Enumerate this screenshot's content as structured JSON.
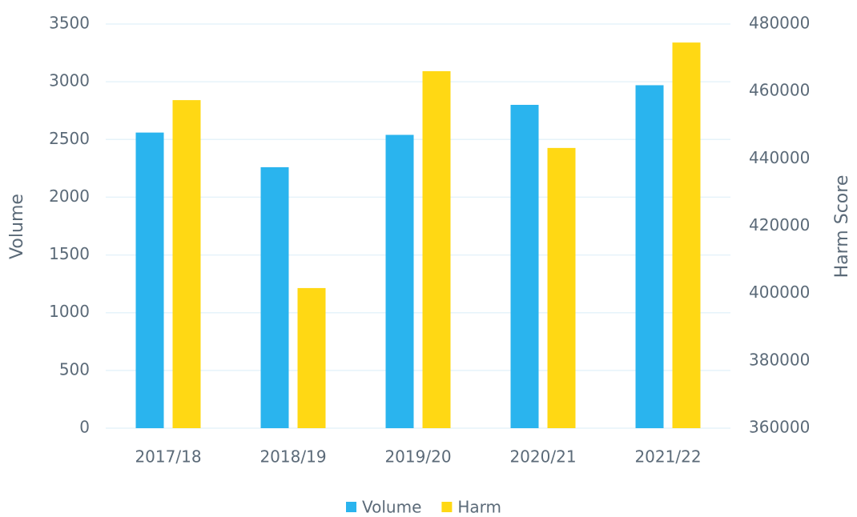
{
  "chart_data": {
    "type": "bar",
    "categories": [
      "2017/18",
      "2018/19",
      "2019/20",
      "2020/21",
      "2021/22"
    ],
    "series": [
      {
        "name": "Volume",
        "color": "#2ab4ee",
        "values": [
          2560,
          2260,
          2540,
          2800,
          2970
        ]
      },
      {
        "name": "Harm",
        "color": "#ffd814",
        "axis": "y2",
        "values": [
          457400,
          401600,
          466000,
          443200,
          474500
        ]
      }
    ],
    "ylabel": "Volume",
    "y2label": "Harm Score",
    "ylim": [
      0,
      3500
    ],
    "yticks": [
      0,
      500,
      1000,
      1500,
      2000,
      2500,
      3000,
      3500
    ],
    "y2lim": [
      360000,
      480000
    ],
    "y2ticks": [
      360000,
      380000,
      400000,
      420000,
      440000,
      460000,
      480000
    ],
    "grid": true,
    "legend": "bottom"
  }
}
